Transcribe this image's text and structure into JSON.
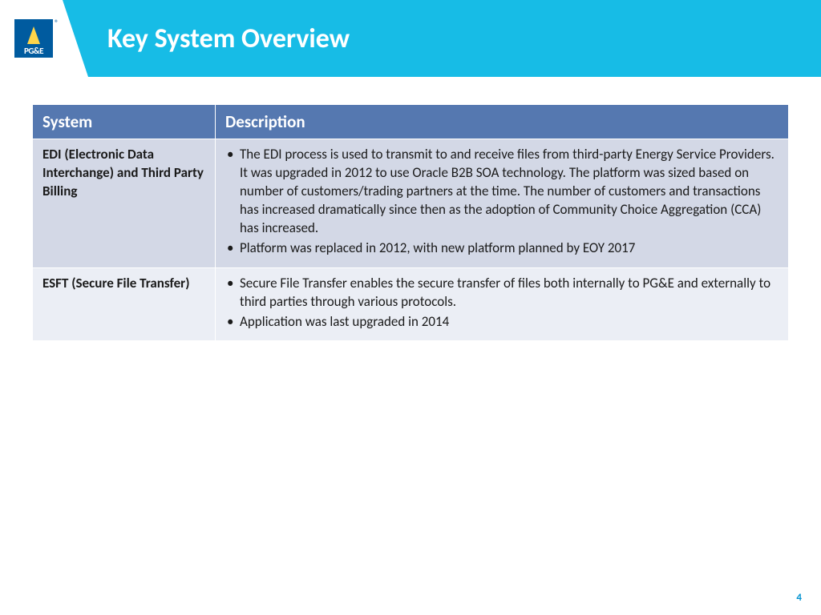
{
  "header": {
    "logo_text": "PG&E",
    "title": "Key System Overview"
  },
  "table": {
    "columns": [
      "System",
      "Description"
    ],
    "rows": [
      {
        "system": "EDI (Electronic Data Interchange) and Third Party Billing",
        "bullets": [
          "The EDI process is used to transmit to and receive files from third-party Energy Service Providers.  It was upgraded in 2012 to use Oracle B2B SOA technology.  The platform was sized based on number of customers/trading partners at the time.  The number of customers and transactions has increased dramatically since then as the adoption of Community Choice Aggregation (CCA) has increased.",
          "Platform was replaced in 2012, with new platform planned by EOY 2017"
        ]
      },
      {
        "system": "ESFT (Secure File Transfer)",
        "bullets": [
          "Secure File Transfer enables the secure transfer of files both internally to PG&E and externally to third parties through various protocols.",
          "Application was last upgraded in 2014"
        ]
      }
    ]
  },
  "page_number": "4",
  "colors": {
    "header_bg": "#17bce6",
    "table_header_bg": "#5578b0",
    "row1_bg": "#d3d8e6",
    "row2_bg": "#ebeef5",
    "logo_bg": "#005b9f",
    "logo_accent": "#ffd54a",
    "page_num_color": "#0092d0"
  }
}
